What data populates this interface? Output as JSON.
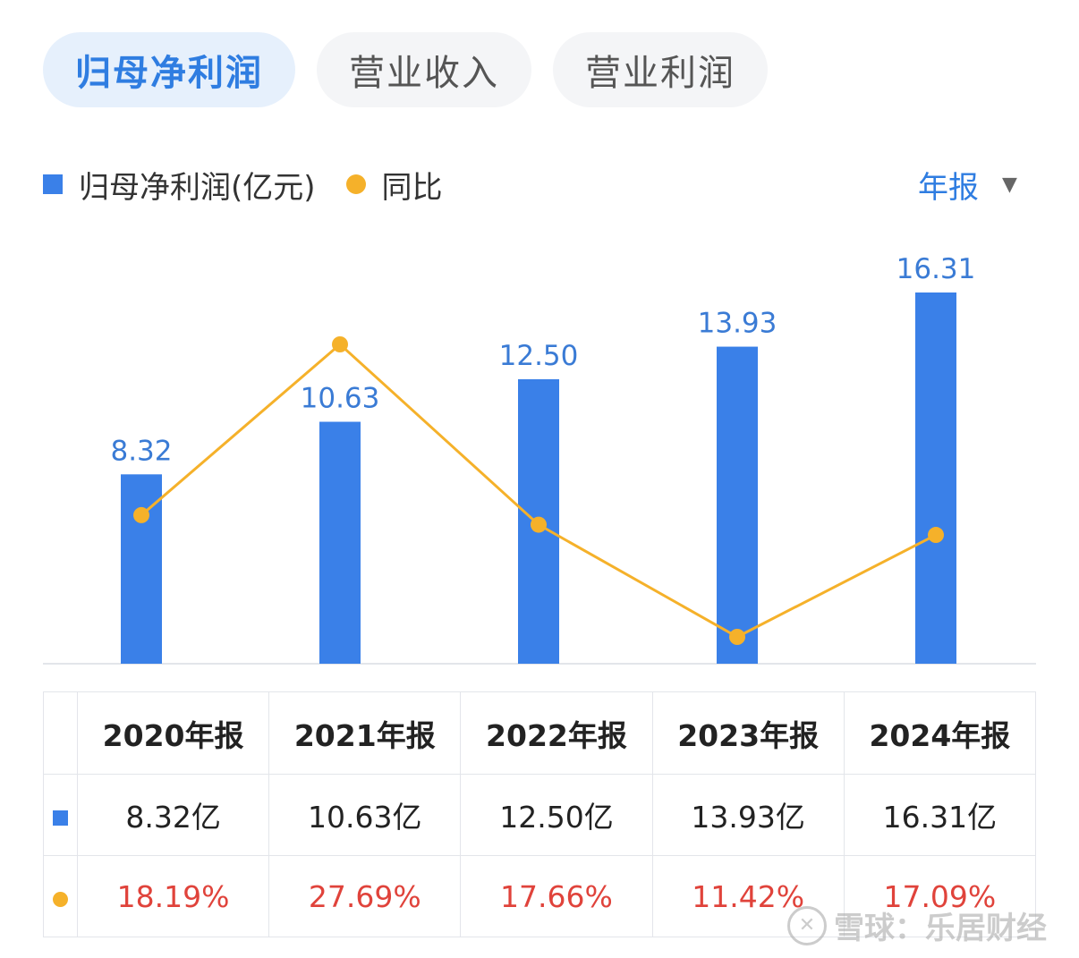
{
  "tabs": [
    {
      "label": "归母净利润",
      "active": true
    },
    {
      "label": "营业收入",
      "active": false
    },
    {
      "label": "营业利润",
      "active": false
    }
  ],
  "legend": {
    "bar_label": "归母净利润(亿元)",
    "line_label": "同比"
  },
  "period_selector": {
    "label": "年报",
    "caret": "▼"
  },
  "colors": {
    "bar": "#3a80e8",
    "line": "#f5b12a",
    "bar_label": "#3a7bd5",
    "growth_text": "#e0433b",
    "active_tab": "#2f7de1"
  },
  "chart_data": {
    "type": "bar",
    "categories": [
      "2020年报",
      "2021年报",
      "2022年报",
      "2023年报",
      "2024年报"
    ],
    "series": [
      {
        "name": "归母净利润(亿元)",
        "type": "bar",
        "values": [
          8.32,
          10.63,
          12.5,
          13.93,
          16.31
        ],
        "labels": [
          "8.32",
          "10.63",
          "12.50",
          "13.93",
          "16.31"
        ]
      },
      {
        "name": "同比",
        "type": "line",
        "values": [
          18.19,
          27.69,
          17.66,
          11.42,
          17.09
        ]
      }
    ]
  },
  "table": {
    "headers": [
      "2020年报",
      "2021年报",
      "2022年报",
      "2023年报",
      "2024年报"
    ],
    "profit_row": [
      "8.32亿",
      "10.63亿",
      "12.50亿",
      "13.93亿",
      "16.31亿"
    ],
    "growth_row": [
      "18.19%",
      "27.69%",
      "17.66%",
      "11.42%",
      "17.09%"
    ]
  },
  "watermark": {
    "text": "雪球：乐居财经"
  }
}
